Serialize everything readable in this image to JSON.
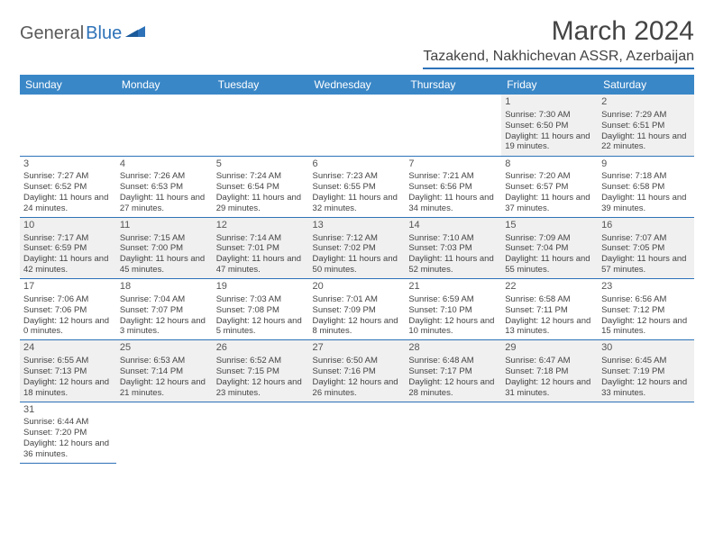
{
  "logo": {
    "part1": "General",
    "part2": "Blue"
  },
  "title": "March 2024",
  "location": "Tazakend, Nakhichevan ASSR, Azerbaijan",
  "colors": {
    "header_bg": "#3a87c7",
    "accent": "#2d72b8",
    "row_alt": "#f0f0f0",
    "text": "#444444"
  },
  "weekdays": [
    "Sunday",
    "Monday",
    "Tuesday",
    "Wednesday",
    "Thursday",
    "Friday",
    "Saturday"
  ],
  "weeks": [
    [
      null,
      null,
      null,
      null,
      null,
      {
        "d": "1",
        "r": "7:30 AM",
        "s": "6:50 PM",
        "l": "11 hours and 19 minutes."
      },
      {
        "d": "2",
        "r": "7:29 AM",
        "s": "6:51 PM",
        "l": "11 hours and 22 minutes."
      }
    ],
    [
      {
        "d": "3",
        "r": "7:27 AM",
        "s": "6:52 PM",
        "l": "11 hours and 24 minutes."
      },
      {
        "d": "4",
        "r": "7:26 AM",
        "s": "6:53 PM",
        "l": "11 hours and 27 minutes."
      },
      {
        "d": "5",
        "r": "7:24 AM",
        "s": "6:54 PM",
        "l": "11 hours and 29 minutes."
      },
      {
        "d": "6",
        "r": "7:23 AM",
        "s": "6:55 PM",
        "l": "11 hours and 32 minutes."
      },
      {
        "d": "7",
        "r": "7:21 AM",
        "s": "6:56 PM",
        "l": "11 hours and 34 minutes."
      },
      {
        "d": "8",
        "r": "7:20 AM",
        "s": "6:57 PM",
        "l": "11 hours and 37 minutes."
      },
      {
        "d": "9",
        "r": "7:18 AM",
        "s": "6:58 PM",
        "l": "11 hours and 39 minutes."
      }
    ],
    [
      {
        "d": "10",
        "r": "7:17 AM",
        "s": "6:59 PM",
        "l": "11 hours and 42 minutes."
      },
      {
        "d": "11",
        "r": "7:15 AM",
        "s": "7:00 PM",
        "l": "11 hours and 45 minutes."
      },
      {
        "d": "12",
        "r": "7:14 AM",
        "s": "7:01 PM",
        "l": "11 hours and 47 minutes."
      },
      {
        "d": "13",
        "r": "7:12 AM",
        "s": "7:02 PM",
        "l": "11 hours and 50 minutes."
      },
      {
        "d": "14",
        "r": "7:10 AM",
        "s": "7:03 PM",
        "l": "11 hours and 52 minutes."
      },
      {
        "d": "15",
        "r": "7:09 AM",
        "s": "7:04 PM",
        "l": "11 hours and 55 minutes."
      },
      {
        "d": "16",
        "r": "7:07 AM",
        "s": "7:05 PM",
        "l": "11 hours and 57 minutes."
      }
    ],
    [
      {
        "d": "17",
        "r": "7:06 AM",
        "s": "7:06 PM",
        "l": "12 hours and 0 minutes."
      },
      {
        "d": "18",
        "r": "7:04 AM",
        "s": "7:07 PM",
        "l": "12 hours and 3 minutes."
      },
      {
        "d": "19",
        "r": "7:03 AM",
        "s": "7:08 PM",
        "l": "12 hours and 5 minutes."
      },
      {
        "d": "20",
        "r": "7:01 AM",
        "s": "7:09 PM",
        "l": "12 hours and 8 minutes."
      },
      {
        "d": "21",
        "r": "6:59 AM",
        "s": "7:10 PM",
        "l": "12 hours and 10 minutes."
      },
      {
        "d": "22",
        "r": "6:58 AM",
        "s": "7:11 PM",
        "l": "12 hours and 13 minutes."
      },
      {
        "d": "23",
        "r": "6:56 AM",
        "s": "7:12 PM",
        "l": "12 hours and 15 minutes."
      }
    ],
    [
      {
        "d": "24",
        "r": "6:55 AM",
        "s": "7:13 PM",
        "l": "12 hours and 18 minutes."
      },
      {
        "d": "25",
        "r": "6:53 AM",
        "s": "7:14 PM",
        "l": "12 hours and 21 minutes."
      },
      {
        "d": "26",
        "r": "6:52 AM",
        "s": "7:15 PM",
        "l": "12 hours and 23 minutes."
      },
      {
        "d": "27",
        "r": "6:50 AM",
        "s": "7:16 PM",
        "l": "12 hours and 26 minutes."
      },
      {
        "d": "28",
        "r": "6:48 AM",
        "s": "7:17 PM",
        "l": "12 hours and 28 minutes."
      },
      {
        "d": "29",
        "r": "6:47 AM",
        "s": "7:18 PM",
        "l": "12 hours and 31 minutes."
      },
      {
        "d": "30",
        "r": "6:45 AM",
        "s": "7:19 PM",
        "l": "12 hours and 33 minutes."
      }
    ],
    [
      {
        "d": "31",
        "r": "6:44 AM",
        "s": "7:20 PM",
        "l": "12 hours and 36 minutes."
      },
      null,
      null,
      null,
      null,
      null,
      null
    ]
  ],
  "labels": {
    "sunrise": "Sunrise: ",
    "sunset": "Sunset: ",
    "daylight": "Daylight: "
  }
}
